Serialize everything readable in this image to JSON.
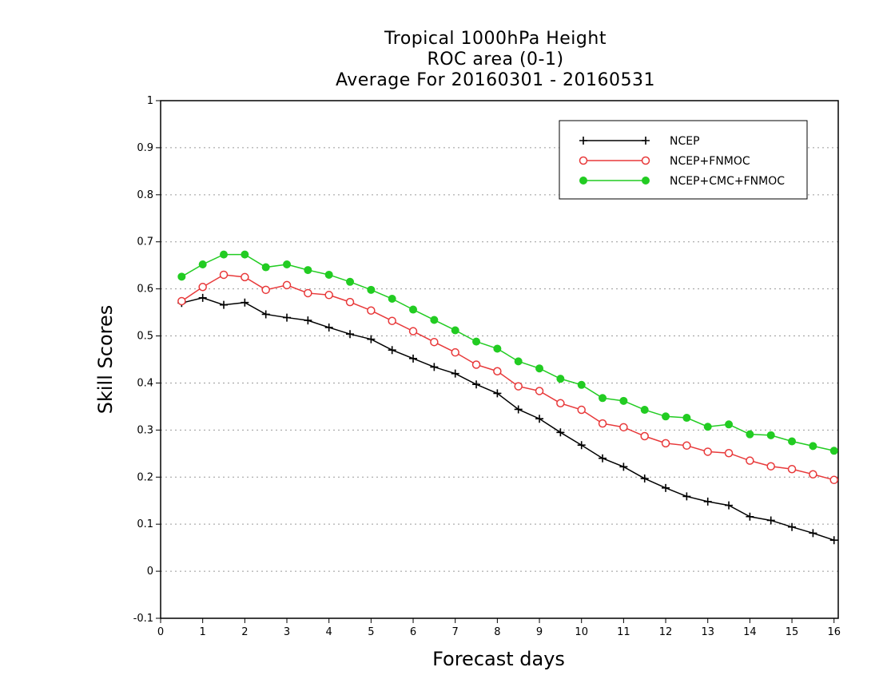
{
  "chart_data": {
    "type": "line",
    "title": "Tropical 1000hPa Height",
    "subtitle": "ROC area (0-1)",
    "subtitle2": "Average For 20160301 - 20160531",
    "xlabel": "Forecast days",
    "ylabel": "Skill Scores",
    "xlim": [
      0,
      16.1
    ],
    "ylim": [
      -0.1,
      1
    ],
    "xticks": [
      "0",
      "1",
      "2",
      "3",
      "4",
      "5",
      "6",
      "7",
      "8",
      "9",
      "10",
      "11",
      "12",
      "13",
      "14",
      "15",
      "16"
    ],
    "yticks": [
      "-0.1",
      "0",
      "0.1",
      "0.2",
      "0.3",
      "0.4",
      "0.5",
      "0.6",
      "0.7",
      "0.8",
      "0.9",
      "1"
    ],
    "grid": true,
    "legend_position": "top-right",
    "x": [
      0.5,
      1,
      1.5,
      2,
      2.5,
      3,
      3.5,
      4,
      4.5,
      5,
      5.5,
      6,
      6.5,
      7,
      7.5,
      8,
      8.5,
      9,
      9.5,
      10,
      10.5,
      11,
      11.5,
      12,
      12.5,
      13,
      13.5,
      14,
      14.5,
      15,
      15.5,
      16
    ],
    "series": [
      {
        "name": "NCEP",
        "color": "#000000",
        "marker": "plus",
        "values": [
          0.57,
          0.581,
          0.566,
          0.571,
          0.546,
          0.539,
          0.533,
          0.518,
          0.504,
          0.493,
          0.47,
          0.452,
          0.434,
          0.42,
          0.397,
          0.378,
          0.344,
          0.324,
          0.295,
          0.268,
          0.24,
          0.222,
          0.197,
          0.177,
          0.159,
          0.148,
          0.14,
          0.116,
          0.108,
          0.094,
          0.081,
          0.066
        ]
      },
      {
        "name": "NCEP+FNMOC",
        "color": "#e8393a",
        "marker": "open-circle",
        "values": [
          0.574,
          0.604,
          0.63,
          0.625,
          0.598,
          0.608,
          0.591,
          0.587,
          0.572,
          0.554,
          0.532,
          0.51,
          0.487,
          0.465,
          0.439,
          0.425,
          0.393,
          0.383,
          0.357,
          0.343,
          0.314,
          0.306,
          0.287,
          0.272,
          0.267,
          0.254,
          0.251,
          0.235,
          0.223,
          0.217,
          0.206,
          0.194
        ]
      },
      {
        "name": "NCEP+CMC+FNMOC",
        "color": "#22cc22",
        "marker": "filled-circle",
        "values": [
          0.626,
          0.652,
          0.673,
          0.673,
          0.646,
          0.652,
          0.64,
          0.63,
          0.615,
          0.598,
          0.579,
          0.556,
          0.534,
          0.512,
          0.488,
          0.473,
          0.446,
          0.431,
          0.409,
          0.396,
          0.368,
          0.362,
          0.343,
          0.329,
          0.326,
          0.307,
          0.312,
          0.291,
          0.289,
          0.276,
          0.266,
          0.256
        ]
      }
    ]
  }
}
